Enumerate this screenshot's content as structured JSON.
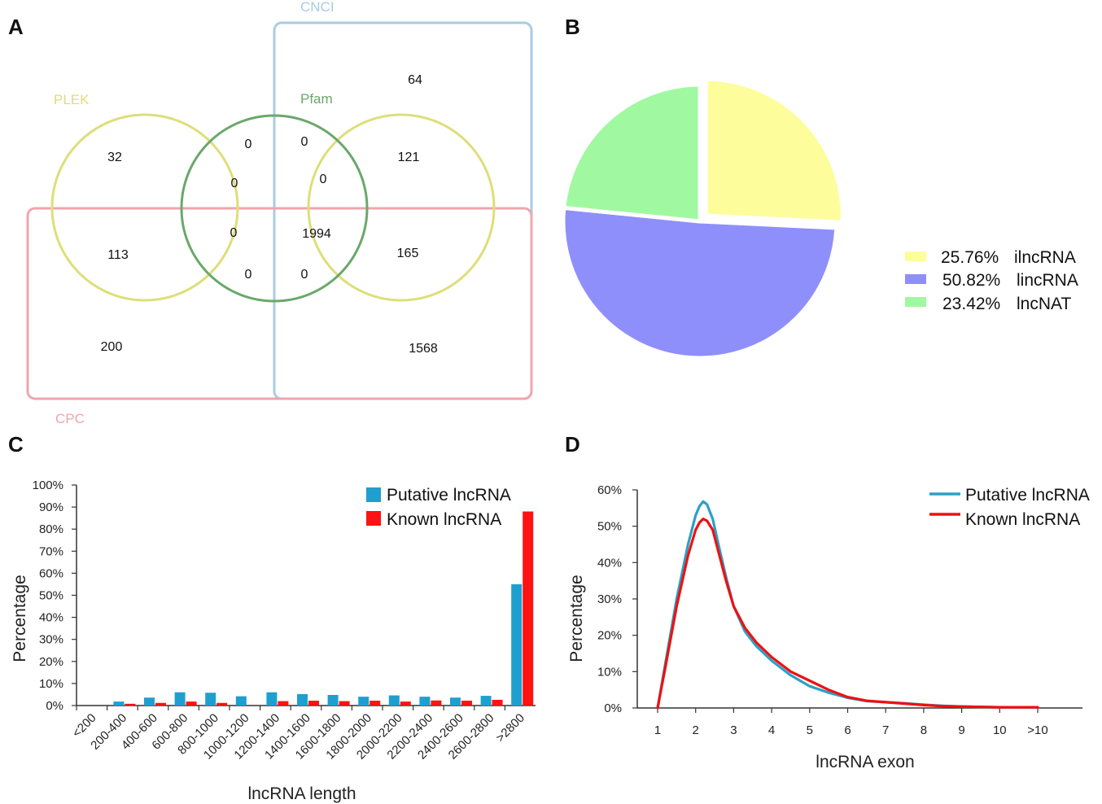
{
  "chart_data": [
    {
      "panel": "A",
      "type": "venn",
      "sets": [
        {
          "name": "CNCI",
          "color": "#a9cbe6"
        },
        {
          "name": "PLEK",
          "color": "#dede7a"
        },
        {
          "name": "Pfam",
          "color": "#6aa86a"
        },
        {
          "name": "CPC",
          "color": "#f0a5ae"
        }
      ],
      "regions": {
        "cnci_only": "64",
        "plek_only": "32",
        "plek_pfam_top_left": "0",
        "pfam_top_right": "0",
        "pfam_mid_left": "0",
        "pfam_mid_right": "0",
        "plek_cnci": "121",
        "plek_cpc": "113",
        "pfam_low_left": "0",
        "core": "1994",
        "plek_cnci_cpc": "165",
        "pfam_bottom_left": "0",
        "pfam_bottom_right": "0",
        "cpc_only": "200",
        "cnci_cpc": "1568"
      }
    },
    {
      "panel": "B",
      "type": "pie",
      "slices": [
        {
          "label": "ilncRNA",
          "value": 25.76,
          "pct_label": "25.76%",
          "color": "#fdfd9c"
        },
        {
          "label": "lincRNA",
          "value": 50.82,
          "pct_label": "50.82%",
          "color": "#8f8ffb"
        },
        {
          "label": "lncNAT",
          "value": 23.42,
          "pct_label": "23.42%",
          "color": "#a0f9a0"
        }
      ]
    },
    {
      "panel": "C",
      "type": "bar",
      "xlabel": "lncRNA length",
      "ylabel": "Percentage",
      "ylim": [
        0,
        100
      ],
      "yticks": [
        "0%",
        "10%",
        "20%",
        "30%",
        "40%",
        "50%",
        "60%",
        "70%",
        "80%",
        "90%",
        "100%"
      ],
      "categories": [
        "<200",
        "200-400",
        "400-600",
        "600-800",
        "800-1000",
        "1000-1200",
        "1200-1400",
        "1400-1600",
        "1600-1800",
        "1800-2000",
        "2000-2200",
        "2200-2400",
        "2400-2600",
        "2600-2800",
        ">2800"
      ],
      "series": [
        {
          "name": "Putative lncRNA",
          "color": "#1f9fd0",
          "values": [
            0,
            1.8,
            3.6,
            6.0,
            5.8,
            4.2,
            6.0,
            5.2,
            4.8,
            4.0,
            4.6,
            4.0,
            3.6,
            4.4,
            55
          ]
        },
        {
          "name": "Known lncRNA",
          "color": "#ff1212",
          "values": [
            0,
            0.8,
            1.2,
            1.8,
            1.2,
            0,
            2.0,
            2.2,
            2.0,
            2.2,
            1.8,
            2.3,
            2.2,
            2.6,
            88
          ]
        }
      ]
    },
    {
      "panel": "D",
      "type": "line",
      "xlabel": "lncRNA exon",
      "ylabel": "Percentage",
      "ylim": [
        0,
        60
      ],
      "yticks": [
        "0%",
        "10%",
        "20%",
        "30%",
        "40%",
        "50%",
        "60%"
      ],
      "xticks": [
        "1",
        "2",
        "3",
        "4",
        "5",
        "6",
        "7",
        "8",
        "9",
        "10",
        ">10"
      ],
      "series": [
        {
          "name": "Putative lncRNA",
          "color": "#2aa1c8",
          "x": [
            1,
            1.2,
            1.5,
            1.8,
            2.0,
            2.1,
            2.2,
            2.3,
            2.45,
            2.6,
            2.8,
            3.0,
            3.3,
            3.6,
            4.0,
            4.5,
            5.0,
            5.5,
            6.0,
            6.5,
            7.0,
            7.5,
            8.0,
            8.5,
            9.0,
            9.5,
            10.0,
            10.5,
            11.0
          ],
          "y": [
            0,
            12,
            30,
            45,
            53,
            55.5,
            56.8,
            56,
            52,
            45,
            36,
            28,
            21,
            17,
            13,
            9,
            6,
            4.2,
            2.8,
            1.9,
            1.6,
            1.3,
            0.9,
            0.6,
            0.4,
            0.3,
            0.2,
            0.2,
            0.2
          ]
        },
        {
          "name": "Known lncRNA",
          "color": "#ee1111",
          "x": [
            1,
            1.2,
            1.5,
            1.8,
            2.0,
            2.1,
            2.2,
            2.3,
            2.45,
            2.6,
            2.8,
            3.0,
            3.3,
            3.6,
            4.0,
            4.5,
            5.0,
            5.5,
            6.0,
            6.5,
            7.0,
            7.5,
            8.0,
            8.5,
            9.0,
            9.5,
            10.0,
            10.5,
            11.0
          ],
          "y": [
            0,
            11,
            28,
            42,
            49,
            51,
            52,
            51.5,
            49,
            43,
            35,
            28,
            22,
            18,
            14,
            10,
            7.5,
            5,
            3,
            2,
            1.6,
            1.2,
            0.8,
            0.5,
            0.4,
            0.3,
            0.2,
            0.2,
            0.2
          ]
        }
      ]
    }
  ]
}
